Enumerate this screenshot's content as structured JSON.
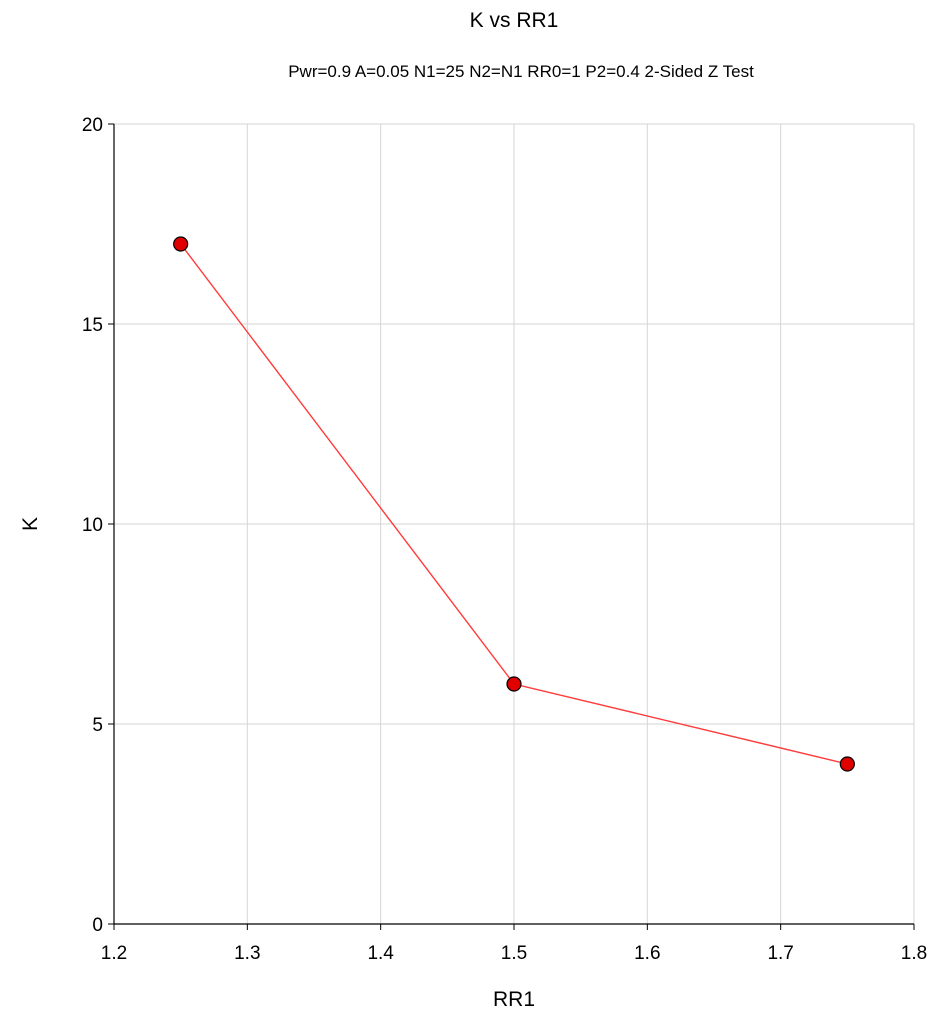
{
  "chart_data": {
    "type": "line",
    "title": "K vs RR1",
    "subtitle": "Pwr=0.9 A=0.05 N1=25 N2=N1 RR0=1 P2=0.4 2-Sided Z Test",
    "xlabel": "RR1",
    "ylabel": "K",
    "xlim": [
      1.2,
      1.8
    ],
    "ylim": [
      0,
      20
    ],
    "x_ticks": [
      "1.2",
      "1.3",
      "1.4",
      "1.5",
      "1.6",
      "1.7",
      "1.8"
    ],
    "y_ticks": [
      "0",
      "5",
      "10",
      "15",
      "20"
    ],
    "grid": true,
    "series": [
      {
        "x": [
          1.25,
          1.5,
          1.75
        ],
        "y": [
          17,
          6,
          4
        ],
        "line_color": "#ff3b3b",
        "marker_color": "#e00000",
        "marker_edge": "#000000"
      }
    ]
  }
}
